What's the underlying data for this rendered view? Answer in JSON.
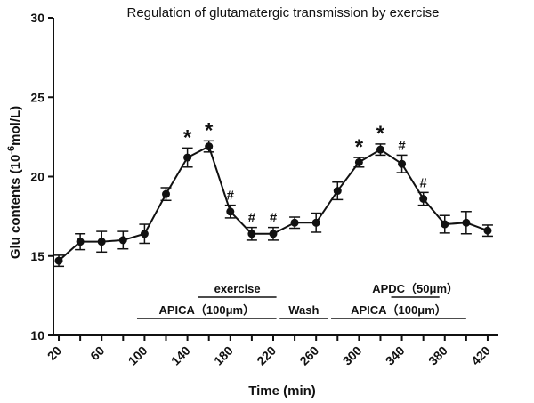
{
  "chart_data": {
    "type": "line",
    "title": "Regulation of glutamatergic transmission by exercise",
    "xlabel": "Time (min)",
    "ylabel_prefix": "Glu contents (10",
    "ylabel_sup": "-6",
    "ylabel_suffix": "mol/L)",
    "xlim": [
      15,
      430
    ],
    "ylim": [
      10,
      30
    ],
    "x_tick_labels": [
      "20",
      "60",
      "100",
      "140",
      "180",
      "220",
      "260",
      "300",
      "340",
      "380",
      "420"
    ],
    "y_tick_labels": [
      "10",
      "15",
      "20",
      "25",
      "30"
    ],
    "series": [
      {
        "name": "Glu",
        "x": [
          20,
          40,
          60,
          80,
          100,
          120,
          140,
          160,
          180,
          200,
          220,
          240,
          260,
          280,
          300,
          320,
          340,
          360,
          380,
          400,
          420
        ],
        "y": [
          14.7,
          15.9,
          15.9,
          16.0,
          16.4,
          18.9,
          21.2,
          21.9,
          17.8,
          16.4,
          16.4,
          17.1,
          17.1,
          19.1,
          20.9,
          21.7,
          20.8,
          18.6,
          17.0,
          17.1,
          16.6
        ],
        "err": [
          0.35,
          0.5,
          0.65,
          0.55,
          0.6,
          0.4,
          0.6,
          0.35,
          0.4,
          0.4,
          0.4,
          0.35,
          0.6,
          0.55,
          0.3,
          0.35,
          0.55,
          0.4,
          0.55,
          0.7,
          0.35
        ]
      }
    ],
    "annotations": [
      {
        "x": 140,
        "text": "*"
      },
      {
        "x": 160,
        "text": "*"
      },
      {
        "x": 180,
        "text": "#"
      },
      {
        "x": 200,
        "text": "#"
      },
      {
        "x": 220,
        "text": "#"
      },
      {
        "x": 300,
        "text": "*"
      },
      {
        "x": 320,
        "text": "*"
      },
      {
        "x": 340,
        "text": "#"
      },
      {
        "x": 360,
        "text": "#"
      }
    ],
    "treatment_bars": [
      {
        "label": "APICA（100μm）",
        "x_start": 93,
        "x_end": 223,
        "level": 0
      },
      {
        "label": "exercise",
        "x_start": 150,
        "x_end": 223,
        "level": 1
      },
      {
        "label": "Wash",
        "x_start": 226,
        "x_end": 271,
        "level": 0
      },
      {
        "label": "APICA（100μm）",
        "x_start": 274,
        "x_end": 400,
        "level": 0
      },
      {
        "label": "APDC（50μm）",
        "x_start": 330,
        "x_end": 375,
        "level": 1
      }
    ]
  }
}
